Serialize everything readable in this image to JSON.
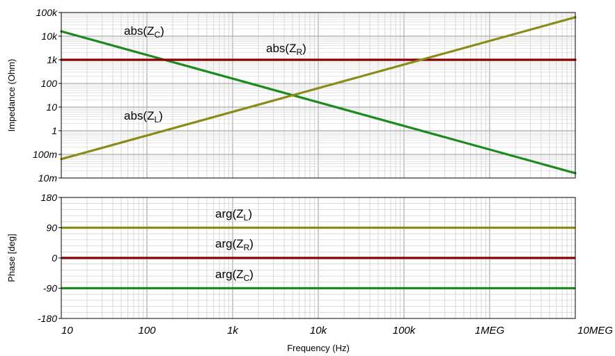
{
  "chart_data": [
    {
      "type": "line",
      "xscale": "log",
      "yscale": "log",
      "xlim": [
        10,
        10000000
      ],
      "ylim": [
        0.01,
        100000
      ],
      "ylabel": "Impedance (Ohm)",
      "y_ticks": [
        {
          "value": 100000,
          "label": "100k"
        },
        {
          "value": 10000,
          "label": "10k"
        },
        {
          "value": 1000,
          "label": "1k"
        },
        {
          "value": 100,
          "label": "100"
        },
        {
          "value": 10,
          "label": "10"
        },
        {
          "value": 1,
          "label": "1"
        },
        {
          "value": 0.1,
          "label": "100m"
        },
        {
          "value": 0.01,
          "label": "10m"
        }
      ],
      "grid": true,
      "series": [
        {
          "name": "abs(Z_C)",
          "color": "#1c8a1c",
          "x": [
            10,
            10000000
          ],
          "y": [
            16000,
            0.016
          ]
        },
        {
          "name": "abs(Z_R)",
          "color": "#8b0000",
          "x": [
            10,
            10000000
          ],
          "y": [
            1000,
            1000
          ]
        },
        {
          "name": "abs(Z_L)",
          "color": "#8b8b1a",
          "x": [
            10,
            10000000
          ],
          "y": [
            0.063,
            63000
          ]
        }
      ],
      "annotations": [
        {
          "base": "abs(Z",
          "sub": "C",
          "close": ")"
        },
        {
          "base": "abs(Z",
          "sub": "R",
          "close": ")"
        },
        {
          "base": "abs(Z",
          "sub": "L",
          "close": ")"
        }
      ]
    },
    {
      "type": "line",
      "xscale": "log",
      "xlim": [
        10,
        10000000
      ],
      "ylim": [
        -180,
        180
      ],
      "ylabel": "Phase [deg]",
      "xlabel": "Frequency (Hz)",
      "y_ticks": [
        {
          "value": 180,
          "label": "180"
        },
        {
          "value": 90,
          "label": "90"
        },
        {
          "value": 0,
          "label": "0"
        },
        {
          "value": -90,
          "label": "-90"
        },
        {
          "value": -180,
          "label": "-180"
        }
      ],
      "x_ticks": [
        {
          "value": 10,
          "label": "10"
        },
        {
          "value": 100,
          "label": "100"
        },
        {
          "value": 1000,
          "label": "1k"
        },
        {
          "value": 10000,
          "label": "10k"
        },
        {
          "value": 100000,
          "label": "100k"
        },
        {
          "value": 1000000,
          "label": "1MEG"
        },
        {
          "value": 10000000,
          "label": "10MEG"
        }
      ],
      "grid": true,
      "series": [
        {
          "name": "arg(Z_L)",
          "color": "#8b8b1a",
          "x": [
            10,
            10000000
          ],
          "y": [
            90,
            90
          ]
        },
        {
          "name": "arg(Z_R)",
          "color": "#8b0000",
          "x": [
            10,
            10000000
          ],
          "y": [
            0,
            0
          ]
        },
        {
          "name": "arg(Z_C)",
          "color": "#1c8a1c",
          "x": [
            10,
            10000000
          ],
          "y": [
            -90,
            -90
          ]
        }
      ],
      "annotations": [
        {
          "base": "arg(Z",
          "sub": "L",
          "close": ")"
        },
        {
          "base": "arg(Z",
          "sub": "R",
          "close": ")"
        },
        {
          "base": "arg(Z",
          "sub": "C",
          "close": ")"
        }
      ]
    }
  ]
}
